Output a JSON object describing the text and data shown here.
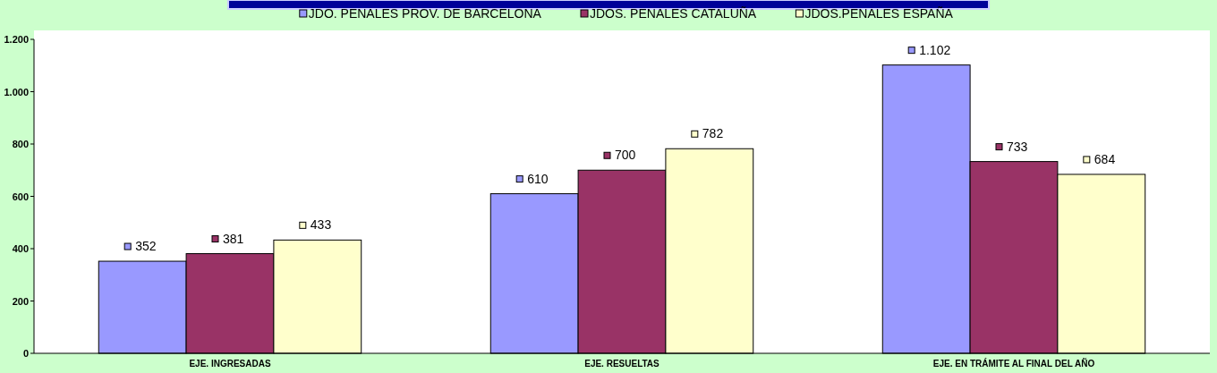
{
  "chart_data": {
    "type": "bar",
    "categories": [
      "EJE. INGRESADAS",
      "EJE. RESUELTAS",
      "EJE. EN TRÁMITE AL FINAL DEL AÑO"
    ],
    "series": [
      {
        "name": "JDO. PENALES PROV. DE BARCELONA",
        "color": "#9999ff",
        "values": [
          352,
          610,
          1102
        ],
        "value_labels": [
          "352",
          "610",
          "1.102"
        ]
      },
      {
        "name": "JDOS. PENALES CATALUÑA",
        "color": "#993366",
        "values": [
          381,
          700,
          733
        ],
        "value_labels": [
          "381",
          "700",
          "733"
        ]
      },
      {
        "name": "JDOS.PENALES ESPAÑA",
        "color": "#ffffcc",
        "values": [
          433,
          782,
          684
        ],
        "value_labels": [
          "433",
          "782",
          "684"
        ]
      }
    ],
    "ylim": [
      0,
      1200
    ],
    "yticks": [
      0,
      200,
      400,
      600,
      800,
      {
        "value": 1000,
        "label": "1.000"
      },
      {
        "value": 1200,
        "label": "1.200"
      }
    ],
    "legend": "top",
    "grid": false
  }
}
